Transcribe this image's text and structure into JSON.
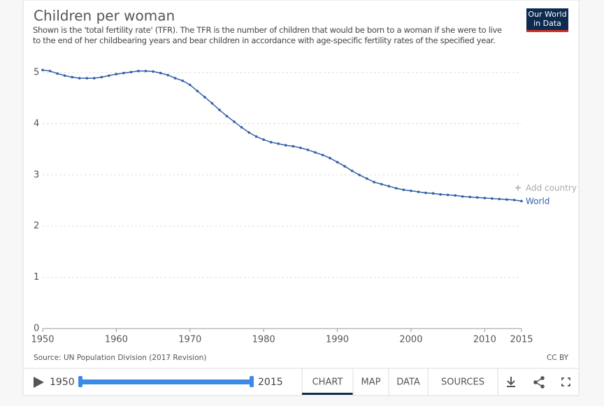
{
  "chart_data": {
    "type": "line",
    "title": "Children per woman",
    "subtitle": "Shown is the 'total fertility rate' (TFR). The TFR is the number of children that would be born to a woman if she were to live to the end of her childbearing years and bear children in accordance with age-specific fertility rates of the specified year.",
    "x": [
      1950,
      1951,
      1952,
      1953,
      1954,
      1955,
      1956,
      1957,
      1958,
      1959,
      1960,
      1961,
      1962,
      1963,
      1964,
      1965,
      1966,
      1967,
      1968,
      1969,
      1970,
      1971,
      1972,
      1973,
      1974,
      1975,
      1976,
      1977,
      1978,
      1979,
      1980,
      1981,
      1982,
      1983,
      1984,
      1985,
      1986,
      1987,
      1988,
      1989,
      1990,
      1991,
      1992,
      1993,
      1994,
      1995,
      1996,
      1997,
      1998,
      1999,
      2000,
      2001,
      2002,
      2003,
      2004,
      2005,
      2006,
      2007,
      2008,
      2009,
      2010,
      2011,
      2012,
      2013,
      2014,
      2015
    ],
    "series": [
      {
        "name": "World",
        "color": "#3360a9",
        "values": [
          5.05,
          5.03,
          4.98,
          4.94,
          4.91,
          4.89,
          4.89,
          4.89,
          4.91,
          4.94,
          4.97,
          4.99,
          5.01,
          5.03,
          5.03,
          5.02,
          4.99,
          4.95,
          4.89,
          4.84,
          4.76,
          4.64,
          4.52,
          4.4,
          4.27,
          4.15,
          4.04,
          3.93,
          3.83,
          3.75,
          3.69,
          3.64,
          3.61,
          3.58,
          3.56,
          3.53,
          3.49,
          3.44,
          3.39,
          3.33,
          3.25,
          3.17,
          3.08,
          3.0,
          2.93,
          2.86,
          2.82,
          2.78,
          2.74,
          2.71,
          2.69,
          2.67,
          2.65,
          2.64,
          2.62,
          2.61,
          2.6,
          2.58,
          2.57,
          2.56,
          2.55,
          2.54,
          2.53,
          2.52,
          2.51,
          2.49
        ]
      }
    ],
    "xlim": [
      1950,
      2015
    ],
    "xticks": [
      1950,
      1960,
      1970,
      1980,
      1990,
      2000,
      2010,
      2015
    ],
    "ylim": [
      0,
      5
    ],
    "yticks": [
      0,
      1,
      2,
      3,
      4,
      5
    ],
    "grid": true,
    "add_country": "Add country",
    "source": "Source: UN Population Division (2017 Revision)",
    "license": "CC BY"
  },
  "logo": [
    "Our World",
    "in Data"
  ],
  "timeline": {
    "start": 1950,
    "end": 2015
  },
  "tabs": [
    "CHART",
    "MAP",
    "DATA",
    "SOURCES"
  ]
}
